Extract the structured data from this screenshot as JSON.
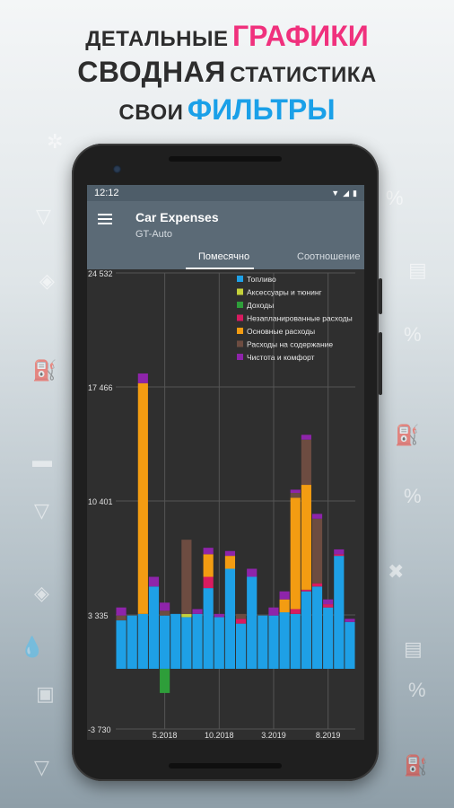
{
  "promo": {
    "line1_a": "ДЕТАЛЬНЫЕ",
    "line1_b": "ГРАФИКИ",
    "line2_a": "СВОДНАЯ",
    "line2_b": "СТАТИСТИКА",
    "line3_a": "СВОИ",
    "line3_b": "ФИЛЬТРЫ"
  },
  "statusbar": {
    "time": "12:12"
  },
  "appbar": {
    "title": "Car Expenses",
    "subtitle": "GT-Auto"
  },
  "tabs": [
    {
      "label": "Помесячно",
      "selected": true
    },
    {
      "label": "Соотношение",
      "selected": false
    }
  ],
  "chart_data": {
    "type": "bar",
    "stacked": true,
    "y_ticks": [
      "24 532",
      "17 466",
      "10 401",
      "3 335",
      "-3 730"
    ],
    "ylim": [
      -3730,
      24532
    ],
    "x_tick_labels": [
      "5.2018",
      "10.2018",
      "3.2019",
      "8.2019"
    ],
    "x_tick_positions": [
      4.5,
      9.5,
      14.5,
      19.5
    ],
    "grid": true,
    "legend_position": "top-right",
    "colors": {
      "fuel": "#1ea0e6",
      "accessories": "#c4d13a",
      "income": "#2e9e3a",
      "unplanned": "#d81b60",
      "main": "#f39c12",
      "maintenance": "#6d4c41",
      "cleanliness": "#8e24aa"
    },
    "series": [
      {
        "key": "fuel",
        "name": "Топливо",
        "values": [
          3000,
          3300,
          3400,
          5100,
          3300,
          3400,
          3200,
          3400,
          5000,
          3200,
          6200,
          2800,
          5700,
          3300,
          3300,
          3500,
          3400,
          4800,
          5100,
          3800,
          7000,
          2900
        ]
      },
      {
        "key": "accessories",
        "name": "Аксессуары и тюнинг",
        "values": [
          0,
          0,
          0,
          0,
          0,
          0,
          200,
          0,
          0,
          0,
          0,
          0,
          0,
          0,
          0,
          0,
          0,
          0,
          0,
          0,
          0,
          0
        ]
      },
      {
        "key": "income",
        "name": "Доходы",
        "values": [
          0,
          0,
          0,
          0,
          -1500,
          0,
          0,
          0,
          0,
          0,
          0,
          0,
          0,
          0,
          0,
          0,
          0,
          0,
          0,
          0,
          0,
          0
        ]
      },
      {
        "key": "unplanned",
        "name": "Незапланированные расходы",
        "values": [
          0,
          0,
          0,
          0,
          0,
          0,
          0,
          0,
          700,
          0,
          0,
          300,
          0,
          0,
          0,
          0,
          300,
          100,
          200,
          200,
          100,
          0
        ]
      },
      {
        "key": "main",
        "name": "Основные расходы",
        "values": [
          0,
          0,
          14300,
          0,
          0,
          0,
          0,
          0,
          1400,
          0,
          800,
          0,
          0,
          0,
          0,
          800,
          6900,
          6500,
          0,
          0,
          0,
          0
        ]
      },
      {
        "key": "maintenance",
        "name": "Расходы на содержание",
        "values": [
          300,
          0,
          0,
          0,
          300,
          0,
          4600,
          0,
          0,
          0,
          0,
          300,
          0,
          0,
          0,
          0,
          300,
          2800,
          4000,
          0,
          0,
          0
        ]
      },
      {
        "key": "cleanliness",
        "name": "Чистота и комфорт",
        "values": [
          500,
          0,
          600,
          600,
          500,
          0,
          0,
          300,
          400,
          200,
          300,
          0,
          500,
          0,
          500,
          500,
          200,
          300,
          300,
          300,
          300,
          200
        ]
      }
    ]
  }
}
